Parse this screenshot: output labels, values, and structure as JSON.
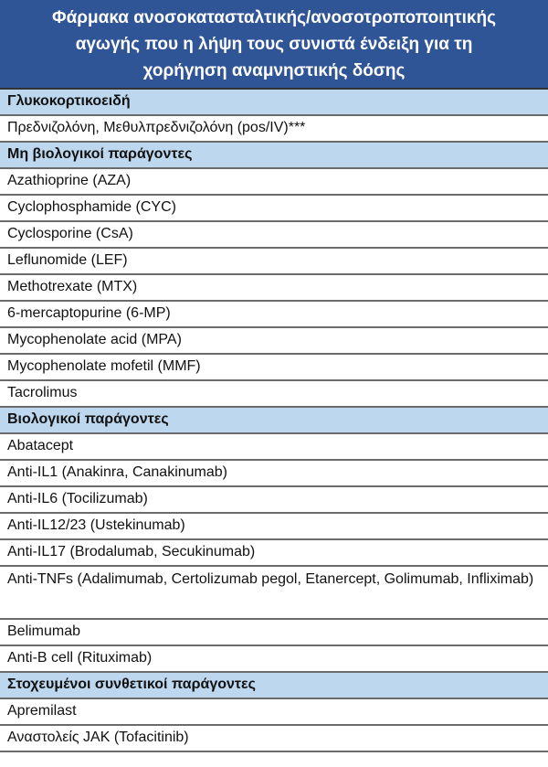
{
  "title": "Φάρμακα ανοσοκατασταλτικής/ανοσοτροποποιητικής αγωγής που η λήψη τους συνιστά ένδειξη για τη χορήγηση αναμνηστικής δόσης",
  "title_lines": [
    "Φάρμακα ανοσοκατασταλτικής/ανοσοτροποποιητικής",
    "αγωγής που η λήψη τους συνιστά ένδειξη για τη",
    "χορήγηση αναμνηστικής δόσης"
  ],
  "colors": {
    "header": "#2f5597",
    "category": "#bdd7ee"
  },
  "groups": [
    {
      "category": "Γλυκοκορτικοειδή",
      "items": [
        "Πρεδνιζολόνη, Μεθυλπρεδνιζολόνη (pos/IV)***"
      ]
    },
    {
      "category": "Μη βιολογικοί παράγοντες",
      "items": [
        "Azathioprine (AZA)",
        "Cyclophosphamide (CYC)",
        "Cyclosporine (CsA)",
        "Leflunomide (LEF)",
        "Methotrexate (MTX)",
        "6-mercaptopurine (6-MP)",
        "Mycophenolate acid (MPA)",
        "Mycophenolate mofetil (MMF)",
        "Tacrolimus"
      ]
    },
    {
      "category": "Βιολογικοί παράγοντες",
      "items": [
        "Abatacept",
        "Anti-IL1 (Anakinra, Canakinumab)",
        "Anti-IL6 (Tocilizumab)",
        "Anti-IL12/23 (Ustekinumab)",
        "Anti-IL17 (Brodalumab, Secukinumab)",
        "Anti-TNFs (Adalimumab, Certolizumab pegol, Etanercept, Golimumab, Infliximab)",
        "Belimumab",
        "Anti-B cell (Rituximab)"
      ]
    },
    {
      "category": "Στοχευμένοι συνθετικοί παράγοντες",
      "items": [
        "Apremilast",
        "Αναστολείς JAK (Tofacitinib)"
      ]
    }
  ]
}
